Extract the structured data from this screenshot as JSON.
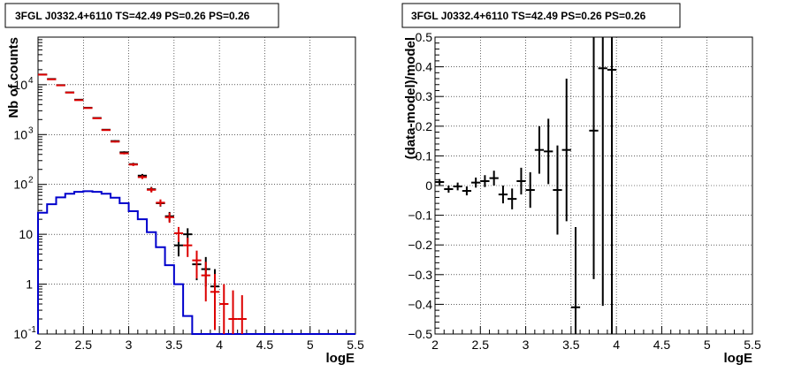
{
  "chart_data": [
    {
      "type": "line",
      "title": "3FGL J0332.4+6110 TS=42.49 PS=0.26 PS=0.26",
      "xlabel": "logE",
      "ylabel": "Nb of counts",
      "xlim": [
        2,
        5.5
      ],
      "ylim": [
        0.1,
        90000
      ],
      "yscale": "log",
      "grid": true,
      "x_ticks": [
        "2",
        "2.5",
        "3",
        "3.5",
        "4",
        "4.5",
        "5",
        "5.5"
      ],
      "y_ticks": [
        {
          "value": 0.1,
          "label": "10",
          "exp": "-1"
        },
        {
          "value": 1,
          "label": "1",
          "exp": ""
        },
        {
          "value": 10,
          "label": "10",
          "exp": ""
        },
        {
          "value": 100,
          "label": "10",
          "exp": "2"
        },
        {
          "value": 1000,
          "label": "10",
          "exp": "3"
        },
        {
          "value": 10000,
          "label": "10",
          "exp": "4"
        }
      ],
      "colors": {
        "data": "#000000",
        "model": "#dd0000",
        "source": "#0000cc"
      },
      "series": [
        {
          "key": "data",
          "kind": "errorbar",
          "points": [
            {
              "x": 2.05,
              "y": 16000,
              "lo": 15800,
              "hi": 16200
            },
            {
              "x": 2.15,
              "y": 13000,
              "lo": 12850,
              "hi": 13150
            },
            {
              "x": 2.25,
              "y": 9800,
              "lo": 9700,
              "hi": 9900
            },
            {
              "x": 2.35,
              "y": 7000,
              "lo": 6920,
              "hi": 7080
            },
            {
              "x": 2.45,
              "y": 5000,
              "lo": 4930,
              "hi": 5070
            },
            {
              "x": 2.55,
              "y": 3450,
              "lo": 3390,
              "hi": 3510
            },
            {
              "x": 2.65,
              "y": 2150,
              "lo": 2105,
              "hi": 2195
            },
            {
              "x": 2.75,
              "y": 1250,
              "lo": 1215,
              "hi": 1285
            },
            {
              "x": 2.85,
              "y": 740,
              "lo": 713,
              "hi": 767
            },
            {
              "x": 2.95,
              "y": 440,
              "lo": 419,
              "hi": 461
            },
            {
              "x": 3.05,
              "y": 255,
              "lo": 239,
              "hi": 271
            },
            {
              "x": 3.15,
              "y": 150,
              "lo": 138,
              "hi": 162
            },
            {
              "x": 3.25,
              "y": 80,
              "lo": 71,
              "hi": 89
            },
            {
              "x": 3.35,
              "y": 42,
              "lo": 36,
              "hi": 49
            },
            {
              "x": 3.45,
              "y": 23,
              "lo": 18,
              "hi": 28
            },
            {
              "x": 3.55,
              "y": 6,
              "lo": 3.6,
              "hi": 8.4
            },
            {
              "x": 3.65,
              "y": 10,
              "lo": 6.8,
              "hi": 13.2
            },
            {
              "x": 3.75,
              "y": 2.5,
              "lo": 1.2,
              "hi": 4.2
            },
            {
              "x": 3.85,
              "y": 2.0,
              "lo": 0.9,
              "hi": 3.5
            },
            {
              "x": 3.95,
              "y": 0.9,
              "lo": 0.25,
              "hi": 2.0
            }
          ]
        },
        {
          "key": "model",
          "kind": "errorbar",
          "points": [
            {
              "x": 2.05,
              "y": 15900,
              "lo": 15700,
              "hi": 16100
            },
            {
              "x": 2.15,
              "y": 12800,
              "lo": 12650,
              "hi": 12950
            },
            {
              "x": 2.25,
              "y": 9700,
              "lo": 9600,
              "hi": 9800
            },
            {
              "x": 2.35,
              "y": 6950,
              "lo": 6870,
              "hi": 7030
            },
            {
              "x": 2.45,
              "y": 4900,
              "lo": 4830,
              "hi": 4970
            },
            {
              "x": 2.55,
              "y": 3400,
              "lo": 3340,
              "hi": 3460
            },
            {
              "x": 2.65,
              "y": 2120,
              "lo": 2075,
              "hi": 2165
            },
            {
              "x": 2.75,
              "y": 1230,
              "lo": 1195,
              "hi": 1265
            },
            {
              "x": 2.85,
              "y": 720,
              "lo": 694,
              "hi": 746
            },
            {
              "x": 2.95,
              "y": 420,
              "lo": 400,
              "hi": 440
            },
            {
              "x": 3.05,
              "y": 250,
              "lo": 234,
              "hi": 266
            },
            {
              "x": 3.15,
              "y": 140,
              "lo": 128,
              "hi": 152
            },
            {
              "x": 3.25,
              "y": 78,
              "lo": 69,
              "hi": 87
            },
            {
              "x": 3.35,
              "y": 43,
              "lo": 37,
              "hi": 50
            },
            {
              "x": 3.45,
              "y": 22,
              "lo": 17,
              "hi": 27
            },
            {
              "x": 3.55,
              "y": 10.5,
              "lo": 7,
              "hi": 14
            },
            {
              "x": 3.65,
              "y": 6.0,
              "lo": 3.5,
              "hi": 8.5
            },
            {
              "x": 3.75,
              "y": 3.0,
              "lo": 1.3,
              "hi": 4.7
            },
            {
              "x": 3.85,
              "y": 1.5,
              "lo": 0.45,
              "hi": 2.8
            },
            {
              "x": 3.95,
              "y": 0.7,
              "lo": 0.12,
              "hi": 1.6
            },
            {
              "x": 4.05,
              "y": 0.4,
              "lo": 0.1,
              "hi": 1.0
            },
            {
              "x": 4.15,
              "y": 0.2,
              "lo": 0.1,
              "hi": 0.75
            },
            {
              "x": 4.25,
              "y": 0.2,
              "lo": 0.1,
              "hi": 0.6
            }
          ]
        },
        {
          "key": "source",
          "kind": "step",
          "edges": [
            2.0,
            2.1,
            2.2,
            2.3,
            2.4,
            2.5,
            2.6,
            2.7,
            2.8,
            2.9,
            3.0,
            3.1,
            3.2,
            3.3,
            3.4,
            3.5,
            3.6,
            3.7,
            5.5
          ],
          "values": [
            27,
            40,
            55,
            65,
            71,
            73,
            71,
            65,
            54,
            42,
            29,
            20,
            11,
            5.5,
            2.4,
            1.0,
            0.23,
            0.1
          ]
        }
      ]
    },
    {
      "type": "scatter",
      "title": "3FGL J0332.4+6110 TS=42.49 PS=0.26 PS=0.26",
      "xlabel": "logE",
      "ylabel": "(data-model)/model",
      "xlim": [
        2,
        5.5
      ],
      "ylim": [
        -0.5,
        0.5
      ],
      "grid": true,
      "x_ticks": [
        "2",
        "2.5",
        "3",
        "3.5",
        "4",
        "4.5",
        "5",
        "5.5"
      ],
      "y_ticks": [
        "−0.5",
        "−0.4",
        "−0.3",
        "−0.2",
        "−0.1",
        "0",
        "0.1",
        "0.2",
        "0.3",
        "0.4",
        "0.5"
      ],
      "y_tick_values": [
        -0.5,
        -0.4,
        -0.3,
        -0.2,
        -0.1,
        0,
        0.1,
        0.2,
        0.3,
        0.4,
        0.5
      ],
      "color": "#000000",
      "points": [
        {
          "x": 2.05,
          "y": 0.012,
          "err": 0.01
        },
        {
          "x": 2.15,
          "y": -0.012,
          "err": 0.012
        },
        {
          "x": 2.25,
          "y": -0.003,
          "err": 0.013
        },
        {
          "x": 2.35,
          "y": -0.018,
          "err": 0.015
        },
        {
          "x": 2.45,
          "y": 0.01,
          "err": 0.017
        },
        {
          "x": 2.55,
          "y": 0.015,
          "err": 0.02
        },
        {
          "x": 2.65,
          "y": 0.025,
          "err": 0.025
        },
        {
          "x": 2.75,
          "y": -0.03,
          "err": 0.03
        },
        {
          "x": 2.85,
          "y": -0.045,
          "err": 0.035
        },
        {
          "x": 2.95,
          "y": 0.015,
          "err": 0.045
        },
        {
          "x": 3.05,
          "y": -0.015,
          "err": 0.06
        },
        {
          "x": 3.15,
          "y": 0.12,
          "err": 0.08
        },
        {
          "x": 3.25,
          "y": 0.115,
          "err": 0.11
        },
        {
          "x": 3.35,
          "y": -0.015,
          "err": 0.15
        },
        {
          "x": 3.45,
          "y": 0.12,
          "err": 0.24
        },
        {
          "x": 3.55,
          "y": -0.41,
          "err": 0.27
        },
        {
          "x": 3.75,
          "y": 0.185,
          "err": 0.5
        },
        {
          "x": 3.85,
          "y": 0.395,
          "err": 0.8
        },
        {
          "x": 3.95,
          "y": 0.39,
          "err": 0.9
        }
      ]
    }
  ]
}
